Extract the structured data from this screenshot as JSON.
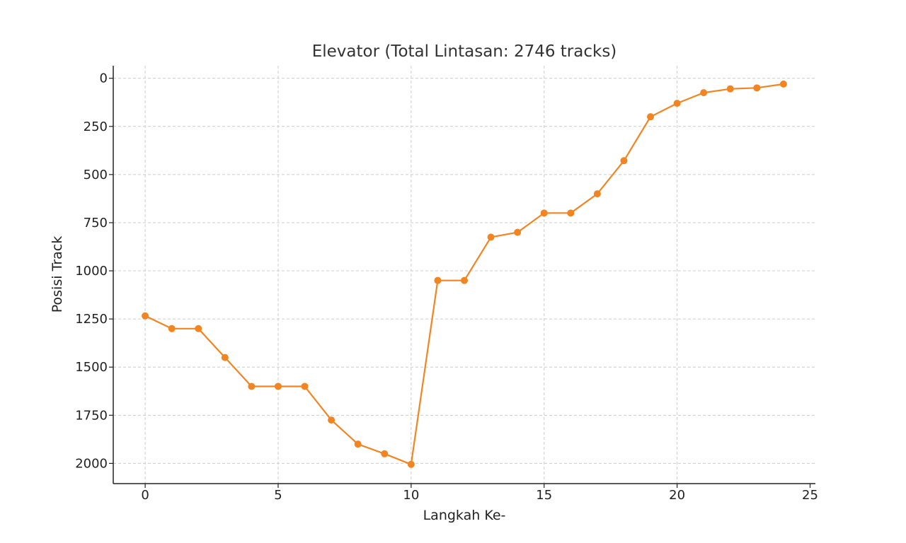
{
  "chart_data": {
    "type": "line",
    "title": "Elevator (Total Lintasan: 2746 tracks)",
    "xlabel": "Langkah Ke-",
    "ylabel": "Posisi Track",
    "xlim": [
      -1.2,
      25.2
    ],
    "ylim": [
      2105,
      -65
    ],
    "y_inverted": true,
    "x_ticks": [
      0,
      5,
      10,
      15,
      20,
      25
    ],
    "y_ticks": [
      0,
      250,
      500,
      750,
      1000,
      1250,
      1500,
      1750,
      2000
    ],
    "grid": true,
    "color": "#f28522",
    "series": [
      {
        "x": [
          0,
          1,
          2,
          3,
          4,
          5,
          6,
          7,
          8,
          9,
          10,
          11,
          12,
          13,
          14,
          15,
          16,
          17,
          18,
          19,
          20,
          21,
          22,
          23,
          24
        ],
        "values": [
          1234,
          1300,
          1300,
          1450,
          1600,
          1600,
          1600,
          1775,
          1900,
          1950,
          2005,
          1050,
          1050,
          825,
          800,
          700,
          700,
          600,
          428,
          200,
          130,
          75,
          55,
          50,
          30
        ]
      }
    ]
  }
}
